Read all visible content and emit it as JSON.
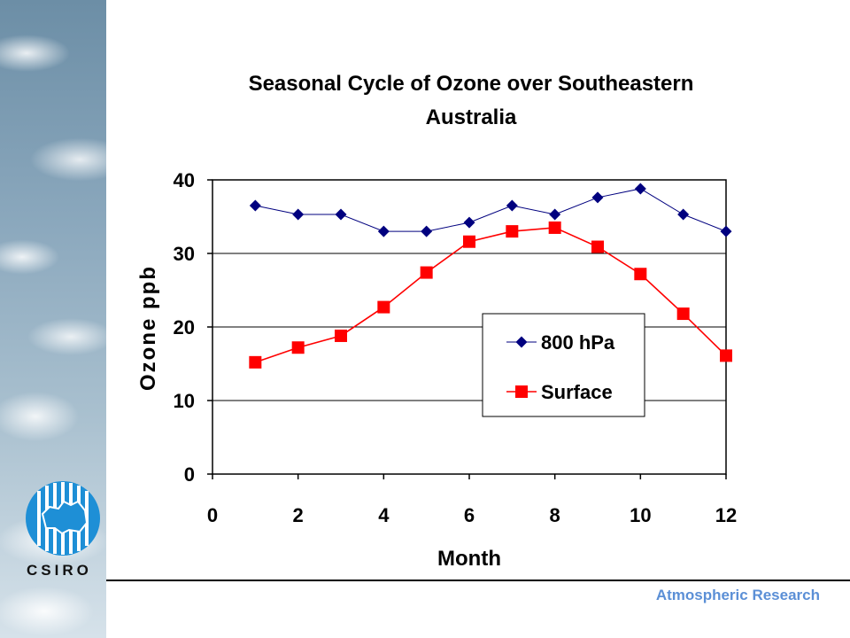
{
  "footer": {
    "text": "Atmospheric Research"
  },
  "logo": {
    "text": "CSIRO"
  },
  "chart_data": {
    "type": "line",
    "title_lines": [
      "Seasonal Cycle of Ozone over Southeastern",
      "Australia"
    ],
    "xlabel": "Month",
    "ylabel": "Ozone ppb",
    "xlim": [
      0,
      12
    ],
    "ylim": [
      0,
      40
    ],
    "xticks": [
      0,
      2,
      4,
      6,
      8,
      10,
      12
    ],
    "yticks": [
      0,
      10,
      20,
      30,
      40
    ],
    "grid": "horizontal",
    "legend_position": "center-right",
    "x": [
      1,
      2,
      3,
      4,
      5,
      6,
      7,
      8,
      9,
      10,
      11,
      12
    ],
    "series": [
      {
        "name": "800 hPa",
        "marker": "diamond",
        "color": "#00007f",
        "values": [
          36.5,
          35.3,
          35.3,
          33.0,
          33.0,
          34.2,
          36.5,
          35.3,
          37.6,
          38.8,
          35.3,
          33.0
        ]
      },
      {
        "name": "Surface",
        "marker": "square",
        "color": "#ff0000",
        "values": [
          15.2,
          17.2,
          18.8,
          22.7,
          27.4,
          31.6,
          33.0,
          33.5,
          30.9,
          27.2,
          21.8,
          16.1
        ]
      }
    ]
  }
}
